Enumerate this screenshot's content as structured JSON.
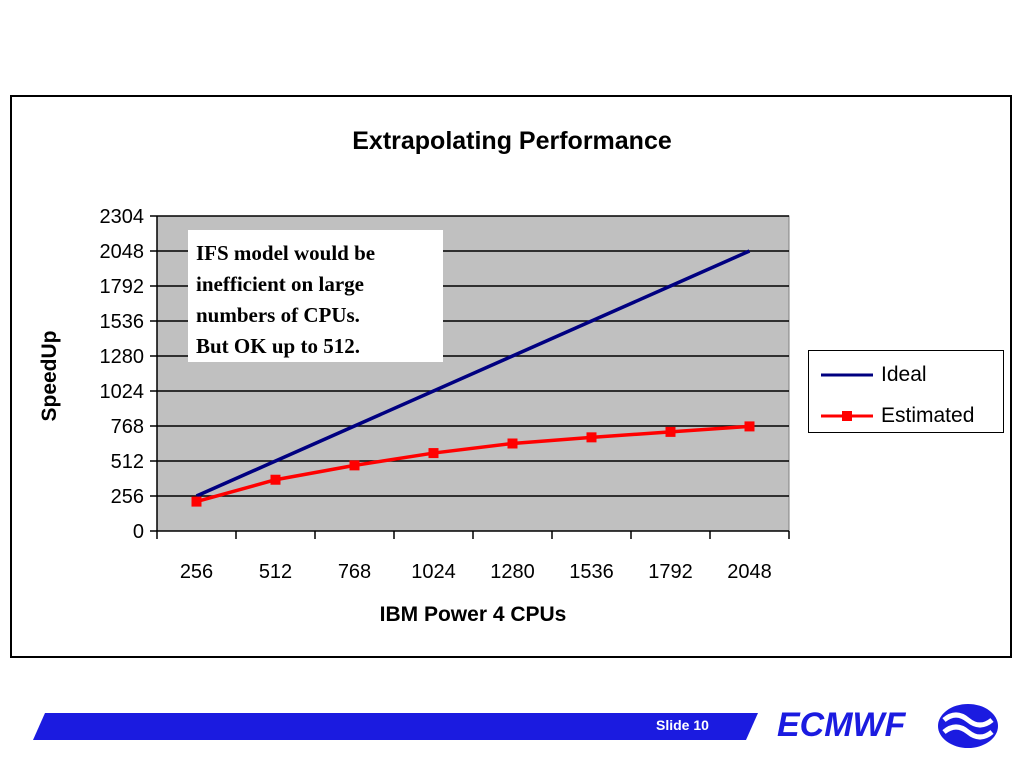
{
  "chart_data": {
    "type": "line",
    "title": "Extrapolating Performance",
    "xlabel": "IBM Power 4 CPUs",
    "ylabel": "SpeedUp",
    "categories": [
      "256",
      "512",
      "768",
      "1024",
      "1280",
      "1536",
      "1792",
      "2048"
    ],
    "yticks": [
      0,
      256,
      512,
      768,
      1024,
      1280,
      1536,
      1792,
      2048,
      2304
    ],
    "ylim": [
      0,
      2304
    ],
    "grid": true,
    "legend_position": "right",
    "series": [
      {
        "name": "Ideal",
        "color": "#000080",
        "marker": "none",
        "values": [
          256,
          512,
          768,
          1024,
          1280,
          1536,
          1792,
          2048
        ]
      },
      {
        "name": "Estimated",
        "color": "#ff0000",
        "marker": "square",
        "values": [
          215,
          375,
          480,
          570,
          640,
          685,
          725,
          765
        ]
      }
    ],
    "annotation": {
      "lines": [
        "IFS model would be",
        "inefficient on large",
        "numbers of CPUs.",
        "But OK up to 512."
      ]
    },
    "plot_background": "#c0c0c0"
  },
  "footer": {
    "slide_label": "Slide 10",
    "brand": "ECMWF",
    "brand_color": "#1b1be0"
  }
}
